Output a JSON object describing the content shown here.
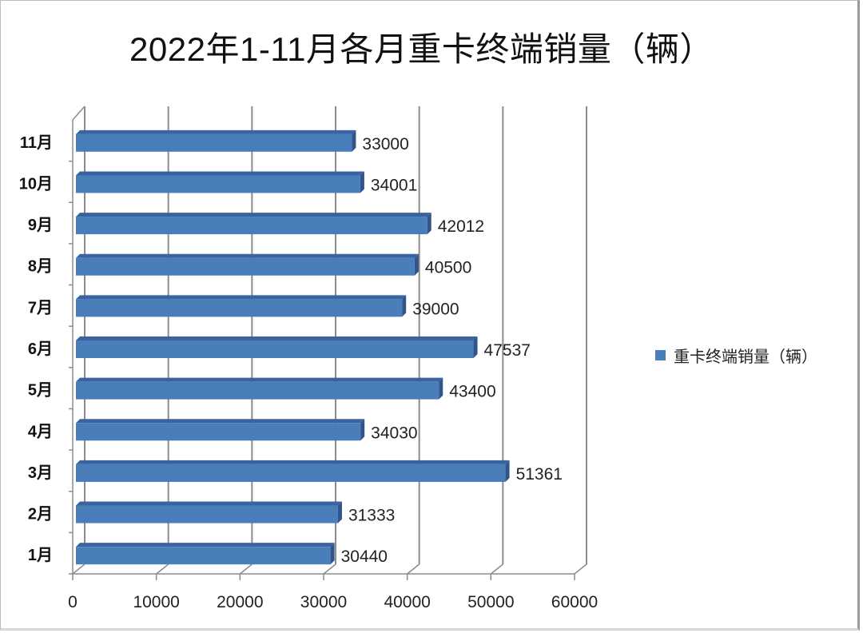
{
  "chart_data": {
    "type": "bar",
    "orientation": "horizontal",
    "style": "3d-clustered-bar",
    "title": "2022年1-11月各月重卡终端销量（辆）",
    "categories": [
      "1月",
      "2月",
      "3月",
      "4月",
      "5月",
      "6月",
      "7月",
      "8月",
      "9月",
      "10月",
      "11月"
    ],
    "series": [
      {
        "name": "重卡终端销量（辆）",
        "color": "#4a7ebb",
        "values": [
          30440,
          31333,
          51361,
          34030,
          43400,
          47537,
          39000,
          40500,
          42012,
          34001,
          33000
        ]
      }
    ],
    "data_labels": [
      "30440",
      "31333",
      "51361",
      "34030",
      "43400",
      "47537",
      "39000",
      "40500",
      "42012",
      "34001",
      "33000"
    ],
    "x_ticks": [
      "0",
      "10000",
      "20000",
      "30000",
      "40000",
      "50000",
      "60000"
    ],
    "xlim": [
      0,
      60000
    ],
    "xlabel": "",
    "ylabel": "",
    "grid": true,
    "legend_position": "right"
  },
  "legend": {
    "label": "重卡终端销量（辆）",
    "color": "#4a7ebb"
  }
}
